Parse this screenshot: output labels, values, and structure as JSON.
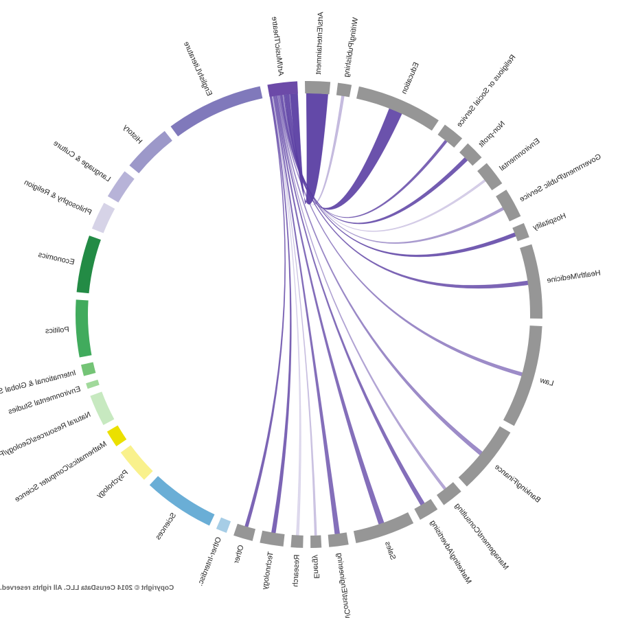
{
  "chart_data": {
    "type": "chord",
    "orientation": "mirrored",
    "source_segment": "Art/Music/Theatre",
    "segments": [
      {
        "label": "Art/Music/Theatre",
        "group": "arts",
        "color": "#6c4aa8",
        "weight": 5.2
      },
      {
        "label": "English/Literature",
        "group": "humanities",
        "color": "#8079bb",
        "weight": 17
      },
      {
        "label": "History",
        "group": "humanities",
        "color": "#9c98c9",
        "weight": 8.5
      },
      {
        "label": "Language & Culture",
        "group": "humanities",
        "color": "#b7b3d8",
        "weight": 5.2
      },
      {
        "label": "Philosophy & Religion",
        "group": "humanities",
        "color": "#d6d3e7",
        "weight": 4.9
      },
      {
        "label": "Economics",
        "group": "social-sciences",
        "color": "#238b45",
        "weight": 10
      },
      {
        "label": "Politics",
        "group": "social-sciences",
        "color": "#41ab5d",
        "weight": 10
      },
      {
        "label": "International & Global Studies",
        "group": "social-sciences",
        "color": "#74c476",
        "weight": 2
      },
      {
        "label": "Environmental Studies",
        "group": "social-sciences",
        "color": "#a1d99b",
        "weight": 1
      },
      {
        "label": "Natural Resources/Geology/Forestry",
        "group": "social-sciences",
        "color": "#c7e9c0",
        "weight": 5.5
      },
      {
        "label": "Mathematics/Computer Science",
        "group": "stem",
        "color": "#ebe000",
        "weight": 3
      },
      {
        "label": "Psychology",
        "group": "stem",
        "color": "#f9f18c",
        "weight": 6.2
      },
      {
        "label": "Sciences",
        "group": "stem",
        "color": "#6aaed6",
        "weight": 12.5
      },
      {
        "label": "Other-Interdisc.",
        "group": "other",
        "color": "#a6cde6",
        "weight": 1.9
      },
      {
        "label": "Other",
        "group": "careers",
        "color": "#969696",
        "weight": 3.4
      },
      {
        "label": "Technology",
        "group": "careers",
        "color": "#969696",
        "weight": 4.1
      },
      {
        "label": "Research",
        "group": "careers",
        "color": "#969696",
        "weight": 2.1
      },
      {
        "label": "Energy",
        "group": "careers",
        "color": "#969696",
        "weight": 1.9
      },
      {
        "label": "Arch/Const/Engineering",
        "group": "careers",
        "color": "#969696",
        "weight": 3.4
      },
      {
        "label": "Sales",
        "group": "careers",
        "color": "#969696",
        "weight": 10.5
      },
      {
        "label": "Marketing/Advertising",
        "group": "careers",
        "color": "#969696",
        "weight": 3.5
      },
      {
        "label": "Management/Consulting",
        "group": "careers",
        "color": "#969696",
        "weight": 3.8
      },
      {
        "label": "Banking/Finance",
        "group": "careers",
        "color": "#969696",
        "weight": 12
      },
      {
        "label": "Law",
        "group": "careers",
        "color": "#969696",
        "weight": 18
      },
      {
        "label": "Health/Medicine",
        "group": "careers",
        "color": "#969696",
        "weight": 13
      },
      {
        "label": "Hospitality",
        "group": "careers",
        "color": "#969696",
        "weight": 2.6
      },
      {
        "label": "Government/Public Service",
        "group": "careers",
        "color": "#969696",
        "weight": 5.2
      },
      {
        "label": "Environmental",
        "group": "careers",
        "color": "#969696",
        "weight": 4.4
      },
      {
        "label": "Non-profit",
        "group": "careers",
        "color": "#969696",
        "weight": 3.4
      },
      {
        "label": "Religious or Social Service",
        "group": "careers",
        "color": "#969696",
        "weight": 3.8
      },
      {
        "label": "Education",
        "group": "careers",
        "color": "#969696",
        "weight": 15
      },
      {
        "label": "Writing/Publishing",
        "group": "careers",
        "color": "#969696",
        "weight": 2.4
      },
      {
        "label": "Arts/Entertainment",
        "group": "careers",
        "color": "#969696",
        "weight": 4.4
      }
    ],
    "links": [
      {
        "from": "Art/Music/Theatre",
        "to": "Arts/Entertainment",
        "value": 10,
        "opacity": 0.95
      },
      {
        "from": "Art/Music/Theatre",
        "to": "Writing/Publishing",
        "value": 1,
        "opacity": 0.35
      },
      {
        "from": "Art/Music/Theatre",
        "to": "Education",
        "value": 5,
        "opacity": 0.9
      },
      {
        "from": "Art/Music/Theatre",
        "to": "Religious or Social Service",
        "value": 1,
        "opacity": 0.8
      },
      {
        "from": "Art/Music/Theatre",
        "to": "Non-profit",
        "value": 1.5,
        "opacity": 0.85
      },
      {
        "from": "Art/Music/Theatre",
        "to": "Environmental",
        "value": 0.8,
        "opacity": 0.25
      },
      {
        "from": "Art/Music/Theatre",
        "to": "Government/Public Service",
        "value": 1,
        "opacity": 0.5
      },
      {
        "from": "Art/Music/Theatre",
        "to": "Hospitality",
        "value": 1.4,
        "opacity": 0.85
      },
      {
        "from": "Art/Music/Theatre",
        "to": "Health/Medicine",
        "value": 1.5,
        "opacity": 0.8
      },
      {
        "from": "Art/Music/Theatre",
        "to": "Law",
        "value": 1.3,
        "opacity": 0.6
      },
      {
        "from": "Art/Music/Theatre",
        "to": "Banking/Finance",
        "value": 1.5,
        "opacity": 0.6
      },
      {
        "from": "Art/Music/Theatre",
        "to": "Management/Consulting",
        "value": 1,
        "opacity": 0.45
      },
      {
        "from": "Art/Music/Theatre",
        "to": "Marketing/Advertising",
        "value": 1.6,
        "opacity": 0.75
      },
      {
        "from": "Art/Music/Theatre",
        "to": "Sales",
        "value": 2,
        "opacity": 0.75
      },
      {
        "from": "Art/Music/Theatre",
        "to": "Arch/Const/Engineering",
        "value": 1.8,
        "opacity": 0.75
      },
      {
        "from": "Art/Music/Theatre",
        "to": "Energy",
        "value": 0.8,
        "opacity": 0.3
      },
      {
        "from": "Art/Music/Theatre",
        "to": "Research",
        "value": 1,
        "opacity": 0.2
      },
      {
        "from": "Art/Music/Theatre",
        "to": "Technology",
        "value": 1.5,
        "opacity": 0.8
      },
      {
        "from": "Art/Music/Theatre",
        "to": "Other",
        "value": 1.2,
        "opacity": 0.8
      }
    ],
    "link_color": "#5b3fa3",
    "start_label_rotation": true,
    "gap_weight": 1.3
  },
  "copyright": "Copyright © 2014 CerusData LLC.  All rights reserved."
}
